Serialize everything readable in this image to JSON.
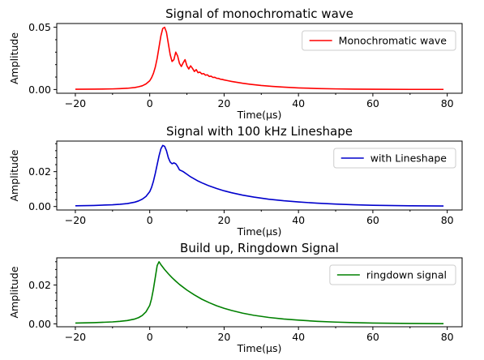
{
  "chart_data": [
    {
      "type": "line",
      "title": "Signal of monochromatic wave",
      "xlabel": "Time(μs)",
      "ylabel": "Amplitude",
      "xlim": [
        -25,
        84
      ],
      "ylim": [
        -0.003,
        0.053
      ],
      "xticks": [
        -20,
        0,
        20,
        40,
        60,
        80
      ],
      "xtick_labels": [
        "−20",
        "0",
        "20",
        "40",
        "60",
        "80"
      ],
      "yticks": [
        0.0,
        0.05
      ],
      "ytick_labels": [
        "0.00",
        "0.05"
      ],
      "legend_position": "upper-right",
      "series": [
        {
          "name": "Monochromatic wave",
          "color": "#ff0000",
          "x": [
            -20,
            -15,
            -10,
            -8,
            -6,
            -4,
            -3,
            -2,
            -1,
            0,
            0.5,
            1,
            1.5,
            2,
            2.5,
            3,
            3.5,
            4,
            4.5,
            5,
            5.5,
            6,
            6.5,
            7,
            7.5,
            8,
            8.5,
            9,
            9.5,
            10,
            10.5,
            11,
            11.5,
            12,
            12.5,
            13,
            13.5,
            14,
            14.5,
            15,
            15.5,
            16,
            16.5,
            17,
            17.5,
            18,
            18.5,
            19,
            19.5,
            20,
            21,
            22,
            23,
            24,
            25,
            27,
            30,
            33,
            36,
            40,
            45,
            50,
            55,
            60,
            70,
            79
          ],
          "y": [
            0.0002,
            0.0003,
            0.0005,
            0.0007,
            0.001,
            0.0016,
            0.0022,
            0.003,
            0.0045,
            0.007,
            0.0095,
            0.013,
            0.018,
            0.025,
            0.034,
            0.043,
            0.049,
            0.05,
            0.046,
            0.037,
            0.028,
            0.0225,
            0.024,
            0.03,
            0.027,
            0.021,
            0.0185,
            0.0215,
            0.024,
            0.019,
            0.0165,
            0.019,
            0.017,
            0.0145,
            0.016,
            0.0135,
            0.014,
            0.0125,
            0.0128,
            0.0115,
            0.0118,
            0.0105,
            0.0107,
            0.0097,
            0.0098,
            0.009,
            0.0089,
            0.0083,
            0.0081,
            0.0077,
            0.0071,
            0.0065,
            0.006,
            0.0055,
            0.005,
            0.0042,
            0.0032,
            0.0025,
            0.0019,
            0.0013,
            0.0008,
            0.0005,
            0.0003,
            0.0002,
            0.0001,
            0.0001
          ]
        }
      ]
    },
    {
      "type": "line",
      "title": "Signal with 100 kHz Lineshape",
      "xlabel": "Time(μs)",
      "ylabel": "Amplitude",
      "xlim": [
        -25,
        84
      ],
      "ylim": [
        -0.002,
        0.0375
      ],
      "xticks": [
        -20,
        0,
        20,
        40,
        60,
        80
      ],
      "xtick_labels": [
        "−20",
        "0",
        "20",
        "40",
        "60",
        "80"
      ],
      "yticks": [
        0.0,
        0.02
      ],
      "ytick_labels": [
        "0.00",
        "0.02"
      ],
      "legend_position": "upper-right",
      "series": [
        {
          "name": "with Lineshape",
          "color": "#0000cc",
          "x": [
            -20,
            -15,
            -10,
            -8,
            -6,
            -4,
            -3,
            -2,
            -1,
            0,
            0.5,
            1,
            1.5,
            2,
            2.5,
            3,
            3.5,
            4,
            4.5,
            5,
            5.5,
            6,
            6.5,
            7,
            7.5,
            8,
            8.5,
            9,
            10,
            11,
            12,
            13,
            14,
            16,
            18,
            20,
            22,
            25,
            28,
            32,
            36,
            40,
            45,
            50,
            55,
            60,
            70,
            79
          ],
          "y": [
            0.0004,
            0.0006,
            0.001,
            0.0013,
            0.0017,
            0.0025,
            0.0032,
            0.0042,
            0.0058,
            0.0085,
            0.011,
            0.0145,
            0.019,
            0.024,
            0.029,
            0.033,
            0.035,
            0.0345,
            0.032,
            0.028,
            0.0255,
            0.0245,
            0.025,
            0.0245,
            0.023,
            0.021,
            0.0205,
            0.02,
            0.0185,
            0.017,
            0.0158,
            0.0146,
            0.0136,
            0.0118,
            0.0103,
            0.009,
            0.0079,
            0.0065,
            0.0054,
            0.0042,
            0.0033,
            0.0026,
            0.0019,
            0.0014,
            0.001,
            0.0007,
            0.0004,
            0.0003
          ]
        }
      ]
    },
    {
      "type": "line",
      "title": "Build up, Ringdown Signal",
      "xlabel": "Time(μs)",
      "ylabel": "Amplitude",
      "xlim": [
        -25,
        84
      ],
      "ylim": [
        -0.0015,
        0.034
      ],
      "xticks": [
        -20,
        0,
        20,
        40,
        60,
        80
      ],
      "xtick_labels": [
        "−20",
        "0",
        "20",
        "40",
        "60",
        "80"
      ],
      "yticks": [
        0.0,
        0.02
      ],
      "ytick_labels": [
        "0.00",
        "0.02"
      ],
      "legend_position": "upper-right",
      "series": [
        {
          "name": "ringdown signal",
          "color": "#008000",
          "x": [
            -20,
            -15,
            -10,
            -8,
            -6,
            -4,
            -3,
            -2,
            -1,
            0,
            0.5,
            1,
            1.5,
            2,
            2.5,
            3,
            4,
            5,
            6,
            7,
            8,
            10,
            12,
            14,
            16,
            18,
            20,
            22,
            25,
            28,
            32,
            36,
            40,
            45,
            50,
            55,
            60,
            70,
            79
          ],
          "y": [
            0.0004,
            0.0006,
            0.001,
            0.0013,
            0.0017,
            0.0025,
            0.0032,
            0.0043,
            0.0062,
            0.0095,
            0.013,
            0.018,
            0.024,
            0.03,
            0.032,
            0.0305,
            0.028,
            0.0258,
            0.0238,
            0.022,
            0.0203,
            0.0174,
            0.0149,
            0.0127,
            0.0109,
            0.0093,
            0.008,
            0.0069,
            0.0055,
            0.0044,
            0.0033,
            0.0025,
            0.0019,
            0.0013,
            0.0009,
            0.0006,
            0.0004,
            0.0002,
            0.0001
          ]
        }
      ]
    }
  ]
}
